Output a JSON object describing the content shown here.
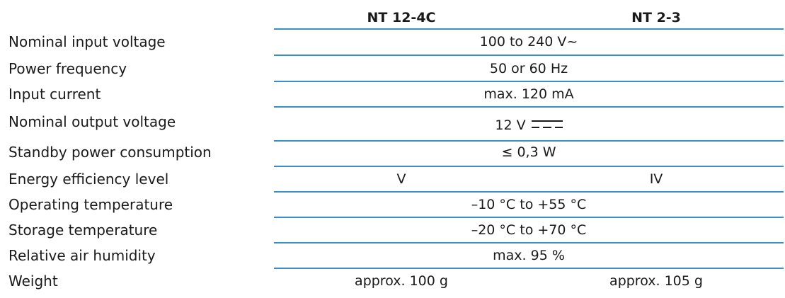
{
  "header": {
    "col1": "NT 12-4C",
    "col2": "NT 2-3"
  },
  "rows": [
    {
      "label": "Nominal input voltage",
      "value": "100 to 240 V~"
    },
    {
      "label": "Power frequency",
      "value": "50 or 60 Hz"
    },
    {
      "label": "Input current",
      "value": "max. 120 mA"
    },
    {
      "label": "Nominal output voltage",
      "value": "12 V",
      "icon": "dc-current-symbol"
    },
    {
      "label": "Standby power consumption",
      "value": "≤ 0,3 W"
    },
    {
      "label": "Energy efficiency level",
      "col1": "V",
      "col2": "IV"
    },
    {
      "label": "Operating temperature",
      "value": "–10 °C to +55 °C"
    },
    {
      "label": "Storage temperature",
      "value": "–20 °C to +70 °C"
    },
    {
      "label": "Relative air humidity",
      "value": "max. 95 %"
    },
    {
      "label": "Weight",
      "col1": "approx. 100 g",
      "col2": "approx. 105 g"
    }
  ],
  "colors": {
    "rule": "#3b8fc8",
    "text": "#1a1a1a"
  }
}
